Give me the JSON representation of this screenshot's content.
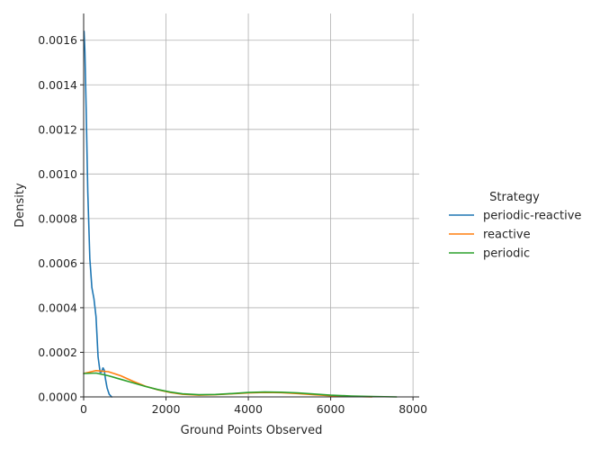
{
  "chart_data": {
    "type": "line",
    "xlabel": "Ground Points Observed",
    "ylabel": "Density",
    "xlim": [
      0,
      8150
    ],
    "ylim": [
      0,
      0.00172
    ],
    "xticks": [
      0,
      2000,
      4000,
      6000,
      8000
    ],
    "yticks": [
      0.0,
      0.0002,
      0.0004,
      0.0006,
      0.0008,
      0.001,
      0.0012,
      0.0014,
      0.0016
    ],
    "xtick_labels": [
      "0",
      "2000",
      "4000",
      "6000",
      "8000"
    ],
    "ytick_labels": [
      "0.0000",
      "0.0002",
      "0.0004",
      "0.0006",
      "0.0008",
      "0.0010",
      "0.0012",
      "0.0014",
      "0.0016"
    ],
    "grid": true,
    "legend": {
      "title": "Strategy",
      "placement": "right"
    },
    "series": [
      {
        "name": "periodic-reactive",
        "color": "#1f77b4",
        "x": [
          10,
          30,
          60,
          100,
          150,
          200,
          250,
          300,
          350,
          400,
          430,
          470,
          500,
          530,
          570,
          620,
          680
        ],
        "y": [
          0.00164,
          0.00155,
          0.0013,
          0.00092,
          0.00062,
          0.00049,
          0.00044,
          0.00036,
          0.00018,
          0.00011,
          0.00011,
          0.00013,
          0.00012,
          8e-05,
          4e-05,
          1.2e-05,
          0.0
        ]
      },
      {
        "name": "reactive",
        "color": "#ff7f0e",
        "x": [
          0,
          300,
          600,
          900,
          1200,
          1500,
          1800,
          2100,
          2400,
          2800,
          3200,
          3600,
          4000,
          4400,
          4800,
          5200,
          5600,
          6000,
          6500,
          7000
        ],
        "y": [
          0.000105,
          0.000118,
          0.000113,
          9.5e-05,
          7e-05,
          4.8e-05,
          3.2e-05,
          2e-05,
          1.2e-05,
          8e-06,
          1e-05,
          1.4e-05,
          1.8e-05,
          2e-05,
          1.9e-05,
          1.5e-05,
          1e-05,
          5e-06,
          2e-06,
          0.0
        ]
      },
      {
        "name": "periodic",
        "color": "#2ca02c",
        "x": [
          0,
          300,
          600,
          900,
          1200,
          1500,
          1800,
          2100,
          2400,
          2800,
          3200,
          3600,
          4000,
          4400,
          4800,
          5200,
          5600,
          6000,
          6500,
          7000,
          7600
        ],
        "y": [
          0.000105,
          0.000107,
          9.5e-05,
          7.9e-05,
          6.3e-05,
          4.7e-05,
          3.3e-05,
          2.2e-05,
          1.4e-05,
          1e-05,
          1.1e-05,
          1.5e-05,
          2e-05,
          2.2e-05,
          2.1e-05,
          1.8e-05,
          1.3e-05,
          8e-06,
          4e-06,
          2e-06,
          0.0
        ]
      }
    ]
  }
}
